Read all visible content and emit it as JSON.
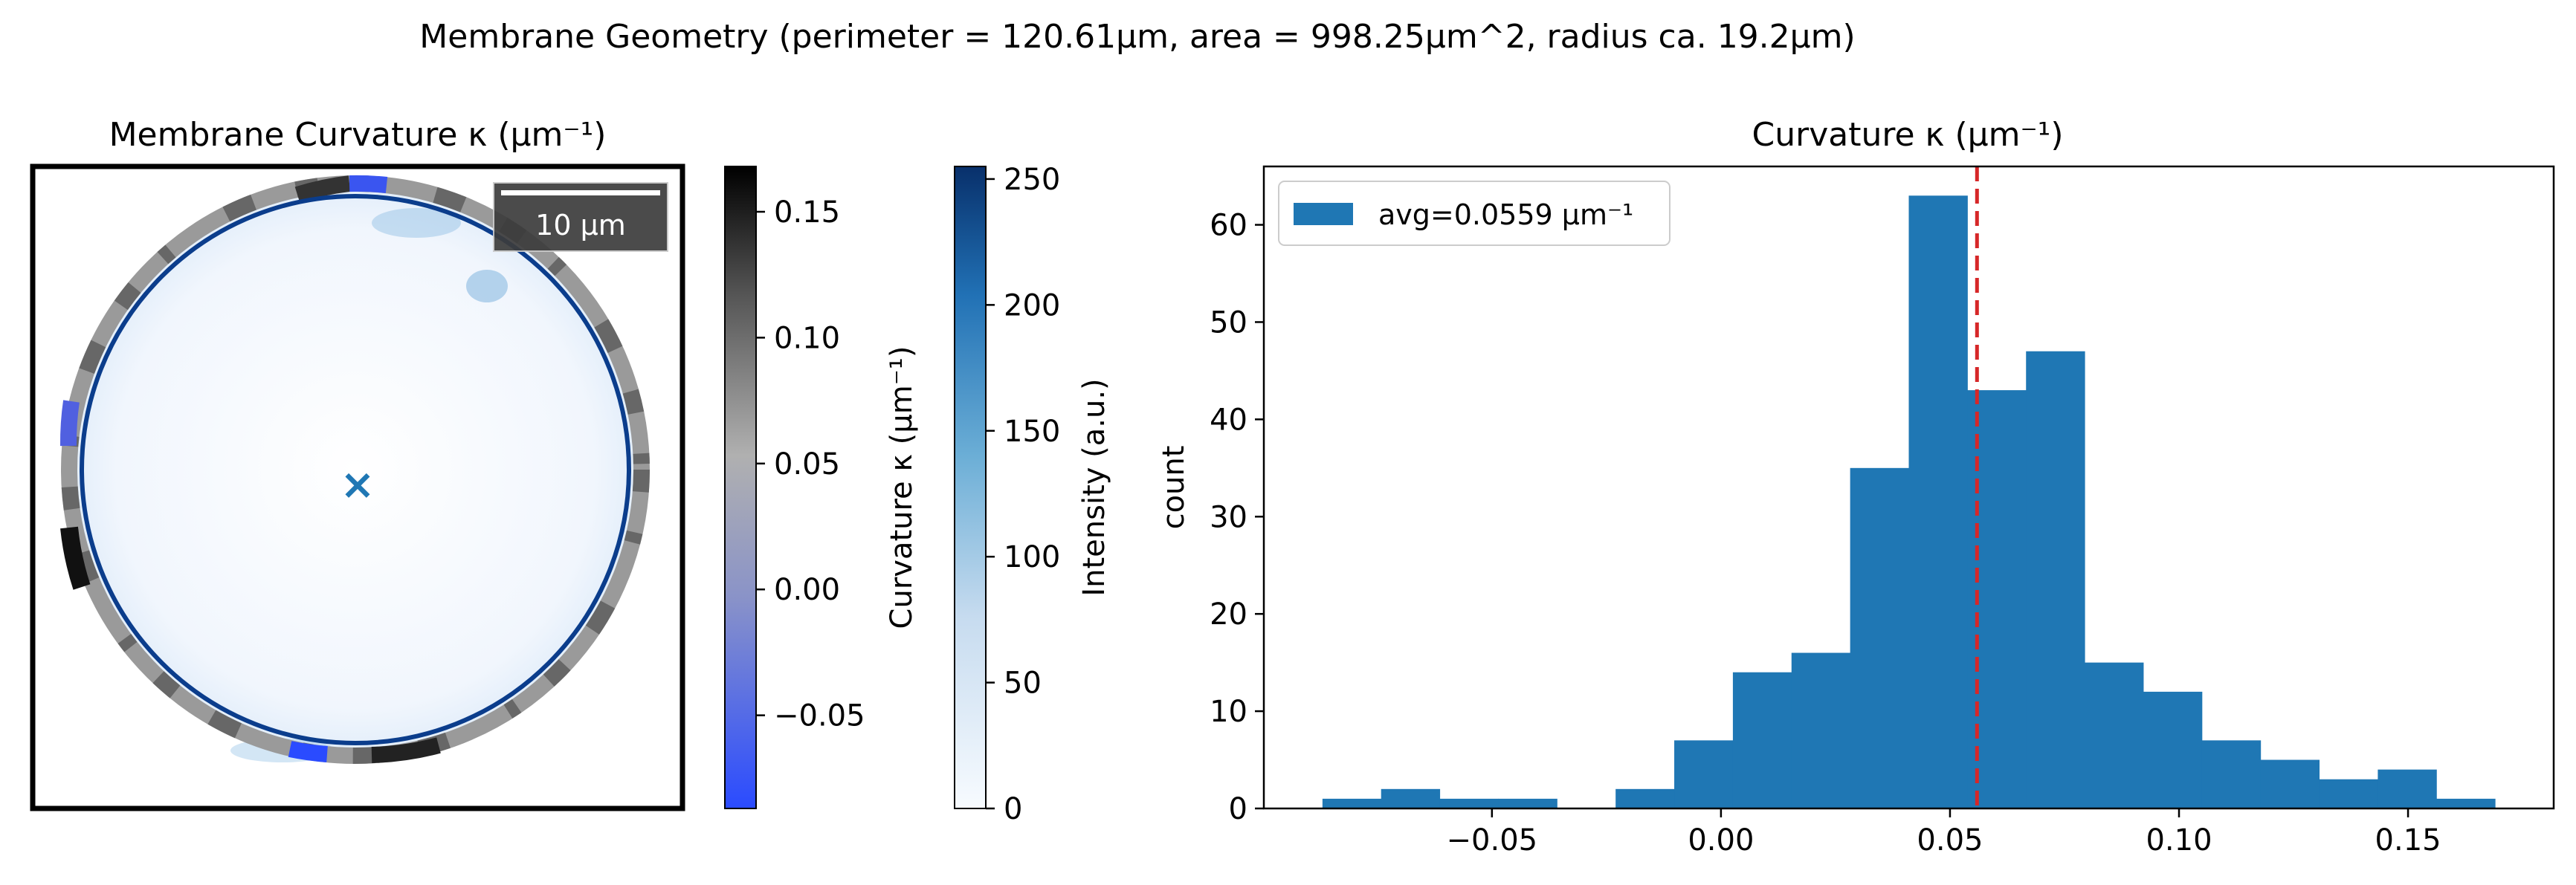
{
  "suptitle": "Membrane Geometry (perimeter = 120.61μm, area = 998.25μm^2, radius ca. 19.2μm)",
  "image_panel": {
    "title": "Membrane Curvature κ (μm⁻¹)",
    "scalebar_label": "10 µm",
    "center_marker": "×"
  },
  "colorbars": [
    {
      "label": "Curvature κ (μm⁻¹)",
      "ticks": [
        -0.05,
        0.0,
        0.05,
        0.1,
        0.15
      ],
      "tick_labels": [
        "−0.05",
        "0.00",
        "0.05",
        "0.10",
        "0.15"
      ],
      "range": [
        -0.087,
        0.168
      ],
      "colors": {
        "low": "#2a4bff",
        "mid": "#b0b0b0",
        "high": "#000000"
      }
    },
    {
      "label": "Intensity (a.u.)",
      "ticks": [
        0,
        50,
        100,
        150,
        200,
        250
      ],
      "tick_labels": [
        "0",
        "50",
        "100",
        "150",
        "200",
        "250"
      ],
      "range": [
        0,
        255
      ],
      "colors": {
        "low": "#f7fbff",
        "mid": "#6baed6",
        "high": "#08306b"
      }
    }
  ],
  "chart_data": {
    "type": "bar",
    "title": "Curvature κ (μm⁻¹)",
    "xlabel": "",
    "ylabel": "count",
    "bin_edges": [
      -0.087,
      -0.0742,
      -0.0614,
      -0.0486,
      -0.0358,
      -0.023,
      -0.0102,
      0.0026,
      0.0154,
      0.0282,
      0.041,
      0.0538,
      0.0666,
      0.0794,
      0.0922,
      0.105,
      0.1178,
      0.1306,
      0.1434,
      0.1562,
      0.169
    ],
    "values": [
      1,
      2,
      1,
      1,
      0,
      2,
      7,
      14,
      16,
      35,
      63,
      43,
      47,
      15,
      12,
      7,
      5,
      3,
      4,
      1
    ],
    "xlim": [
      -0.0998,
      0.1818
    ],
    "ylim": [
      0,
      66
    ],
    "xticks": [
      -0.05,
      0.0,
      0.05,
      0.1,
      0.15
    ],
    "xtick_labels": [
      "−0.05",
      "0.00",
      "0.05",
      "0.10",
      "0.15"
    ],
    "yticks": [
      0,
      10,
      20,
      30,
      40,
      50,
      60
    ],
    "ytick_labels": [
      "0",
      "10",
      "20",
      "30",
      "40",
      "50",
      "60"
    ],
    "average": 0.0559,
    "legend": {
      "label": "avg=0.0559 μm⁻¹",
      "placement": "upper-left"
    },
    "grid": false,
    "colors": {
      "bar": "#1f77b4",
      "avg_line": "#d62728"
    }
  }
}
